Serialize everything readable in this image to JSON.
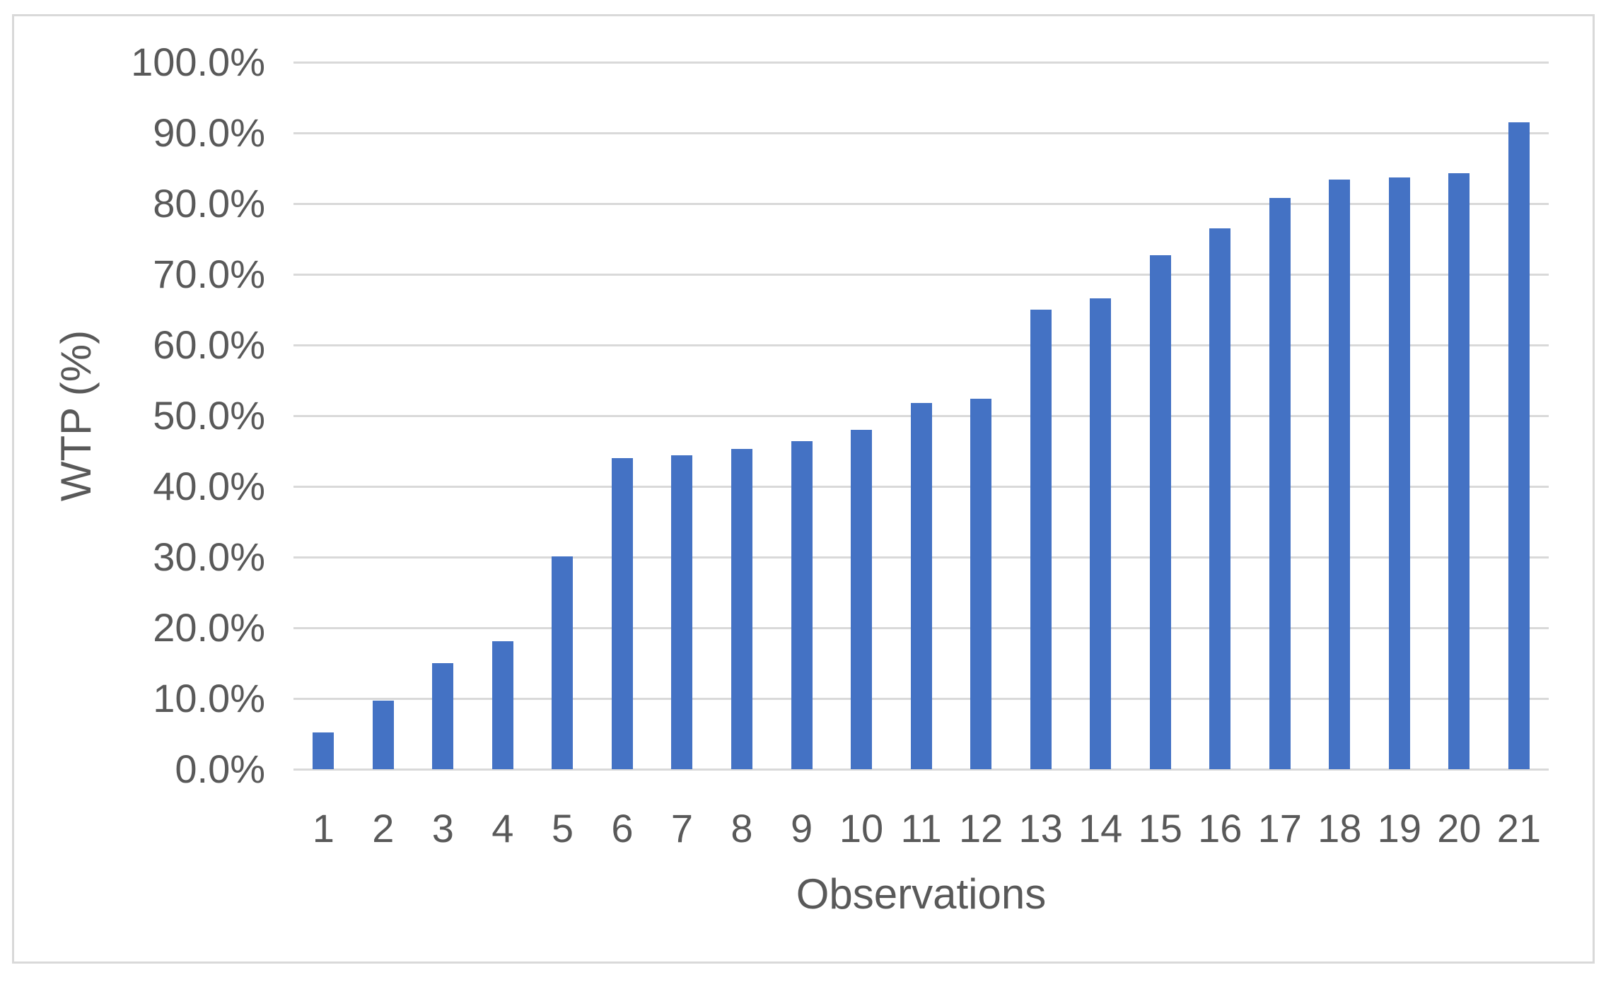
{
  "chart_data": {
    "type": "bar",
    "title": "",
    "xlabel": "Observations",
    "ylabel": "WTP (%)",
    "categories": [
      "1",
      "2",
      "3",
      "4",
      "5",
      "6",
      "7",
      "8",
      "9",
      "10",
      "11",
      "12",
      "13",
      "14",
      "15",
      "16",
      "17",
      "18",
      "19",
      "20",
      "21"
    ],
    "values": [
      5.2,
      9.7,
      15.0,
      18.1,
      30.1,
      44.0,
      44.4,
      45.3,
      46.4,
      48.0,
      51.8,
      52.4,
      65.0,
      66.6,
      72.7,
      76.5,
      80.8,
      83.4,
      83.7,
      84.3,
      91.5
    ],
    "y_tick_labels": [
      "0.0%",
      "10.0%",
      "20.0%",
      "30.0%",
      "40.0%",
      "50.0%",
      "60.0%",
      "70.0%",
      "80.0%",
      "90.0%",
      "100.0%"
    ],
    "ylim": [
      0,
      100
    ],
    "y_tick_step": 10,
    "grid": true,
    "legend": false,
    "series_name": "WTP",
    "colors": {
      "bar_fill": "#4472C4",
      "gridline": "#D9D9D9",
      "axis_text": "#595959",
      "frame_border": "#D9D9D9",
      "background": "#FFFFFF"
    }
  }
}
